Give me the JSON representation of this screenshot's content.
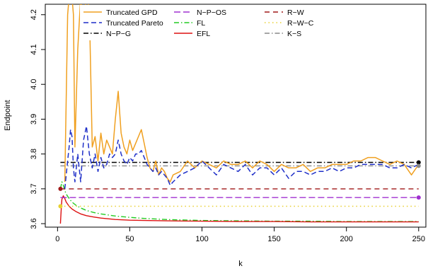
{
  "chart_data": {
    "type": "line",
    "title": "",
    "xlabel": "k",
    "ylabel": "Endpoint",
    "xlim": [
      0,
      250
    ],
    "ylim": [
      3.59,
      4.23
    ],
    "xticks": [
      0,
      50,
      100,
      150,
      200,
      250
    ],
    "yticks": [
      3.6,
      3.7,
      3.8,
      3.9,
      4.0,
      4.1,
      4.2
    ],
    "xtick_labels": [
      "0",
      "50",
      "100",
      "150",
      "200",
      "250"
    ],
    "ytick_labels": [
      "3.6",
      "3.7",
      "3.8",
      "3.9",
      "4.0",
      "4.1",
      "4.2"
    ],
    "grid": false,
    "legend_position": "top",
    "series": [
      {
        "name": "Truncated GPD",
        "color": "#F0A020",
        "dash": "solid",
        "x": [
          5,
          7,
          8,
          9,
          10,
          11,
          12,
          14,
          16,
          18,
          20,
          22,
          24,
          26,
          28,
          30,
          32,
          34,
          36,
          38,
          40,
          42,
          44,
          46,
          48,
          50,
          52,
          54,
          56,
          58,
          60,
          62,
          64,
          66,
          68,
          70,
          72,
          74,
          76,
          78,
          80,
          85,
          90,
          95,
          100,
          105,
          110,
          115,
          120,
          125,
          130,
          135,
          140,
          145,
          150,
          155,
          160,
          165,
          170,
          175,
          180,
          185,
          190,
          195,
          200,
          205,
          210,
          215,
          220,
          225,
          230,
          235,
          240,
          245,
          250
        ],
        "y": [
          3.72,
          4.2,
          4.25,
          4.25,
          4.25,
          4.2,
          3.82,
          4.1,
          4.25,
          4.18,
          4.25,
          4.22,
          3.82,
          3.85,
          3.78,
          3.86,
          3.8,
          3.84,
          3.82,
          3.8,
          3.9,
          3.98,
          3.86,
          3.82,
          3.8,
          3.84,
          3.81,
          3.83,
          3.85,
          3.87,
          3.83,
          3.79,
          3.76,
          3.75,
          3.78,
          3.74,
          3.76,
          3.75,
          3.73,
          3.72,
          3.74,
          3.75,
          3.78,
          3.76,
          3.78,
          3.77,
          3.76,
          3.78,
          3.77,
          3.77,
          3.78,
          3.76,
          3.78,
          3.77,
          3.75,
          3.77,
          3.76,
          3.76,
          3.77,
          3.75,
          3.76,
          3.76,
          3.77,
          3.77,
          3.77,
          3.78,
          3.78,
          3.79,
          3.79,
          3.78,
          3.77,
          3.78,
          3.77,
          3.74,
          3.77
        ]
      },
      {
        "name": "Truncated Pareto",
        "color": "#1F2FC8",
        "dash": "7,4",
        "x": [
          5,
          7,
          8,
          9,
          10,
          11,
          12,
          14,
          16,
          18,
          20,
          22,
          24,
          26,
          28,
          30,
          32,
          34,
          36,
          38,
          40,
          42,
          44,
          46,
          48,
          50,
          52,
          54,
          56,
          58,
          60,
          62,
          64,
          66,
          68,
          70,
          72,
          74,
          76,
          78,
          80,
          85,
          90,
          95,
          100,
          105,
          110,
          115,
          120,
          125,
          130,
          135,
          140,
          145,
          150,
          155,
          160,
          165,
          170,
          175,
          180,
          185,
          190,
          195,
          200,
          205,
          210,
          215,
          220,
          225,
          230,
          235,
          240,
          245,
          250
        ],
        "y": [
          3.7,
          3.78,
          3.82,
          3.87,
          3.85,
          3.76,
          3.72,
          3.8,
          3.72,
          3.84,
          3.88,
          3.8,
          3.76,
          3.8,
          3.75,
          3.79,
          3.76,
          3.77,
          3.8,
          3.79,
          3.8,
          3.84,
          3.8,
          3.78,
          3.77,
          3.79,
          3.78,
          3.8,
          3.8,
          3.81,
          3.79,
          3.77,
          3.76,
          3.75,
          3.76,
          3.74,
          3.75,
          3.74,
          3.73,
          3.71,
          3.72,
          3.74,
          3.75,
          3.76,
          3.78,
          3.76,
          3.74,
          3.77,
          3.76,
          3.75,
          3.77,
          3.74,
          3.76,
          3.76,
          3.74,
          3.76,
          3.73,
          3.75,
          3.75,
          3.74,
          3.75,
          3.75,
          3.76,
          3.75,
          3.76,
          3.76,
          3.77,
          3.77,
          3.77,
          3.77,
          3.76,
          3.76,
          3.77,
          3.76,
          3.77
        ]
      },
      {
        "name": "N−P−G",
        "color": "#000000",
        "dash": "7,3,1.5,3",
        "x": [
          2,
          250
        ],
        "y": [
          3.776,
          3.776
        ],
        "endpoint_marker": true
      },
      {
        "name": "N−P−OS",
        "color": "#A030D0",
        "dash": "9,4",
        "x": [
          2,
          250
        ],
        "y": [
          3.675,
          3.675
        ],
        "endpoint_marker": true
      },
      {
        "name": "FL",
        "color": "#22CC22",
        "dash": "7,3,1.5,3",
        "x": [
          2,
          3,
          4,
          5,
          6,
          8,
          10,
          13,
          16,
          20,
          25,
          30,
          40,
          50,
          60,
          75,
          100,
          125,
          150,
          175,
          200,
          225,
          250
        ],
        "y": [
          3.7,
          3.72,
          3.71,
          3.695,
          3.685,
          3.672,
          3.662,
          3.652,
          3.645,
          3.638,
          3.632,
          3.628,
          3.622,
          3.618,
          3.615,
          3.612,
          3.609,
          3.608,
          3.607,
          3.607,
          3.606,
          3.606,
          3.606
        ]
      },
      {
        "name": "EFL",
        "color": "#DD1111",
        "dash": "solid",
        "x": [
          2,
          2.5,
          3,
          4,
          5,
          6,
          8,
          10,
          13,
          16,
          20,
          25,
          30,
          40,
          50,
          60,
          75,
          100,
          125,
          150,
          175,
          200,
          225,
          250
        ],
        "y": [
          3.6,
          3.64,
          3.67,
          3.68,
          3.672,
          3.662,
          3.65,
          3.642,
          3.634,
          3.628,
          3.623,
          3.619,
          3.616,
          3.612,
          3.61,
          3.609,
          3.608,
          3.607,
          3.606,
          3.606,
          3.605,
          3.605,
          3.605,
          3.605
        ]
      },
      {
        "name": "R−W",
        "color": "#A01818",
        "dash": "7,5",
        "x": [
          2,
          250
        ],
        "y": [
          3.7,
          3.7
        ]
      },
      {
        "name": "R−W−C",
        "color": "#E8D030",
        "dash": "1.5,4",
        "x": [
          2,
          250
        ],
        "y": [
          3.65,
          3.65
        ]
      },
      {
        "name": "K−S",
        "color": "#888888",
        "dash": "7,3,1.5,3",
        "x": [
          2,
          250
        ],
        "y": [
          3.766,
          3.766
        ],
        "endpoint_marker": true
      }
    ],
    "markers": [
      {
        "x": 2,
        "y": 3.7,
        "color": "#A01818"
      },
      {
        "x": 2,
        "y": 3.65,
        "color": "#E8D030"
      },
      {
        "x": 250,
        "y": 3.776,
        "color": "#000000"
      },
      {
        "x": 250,
        "y": 3.766,
        "color": "#888888"
      },
      {
        "x": 250,
        "y": 3.675,
        "color": "#A030D0"
      }
    ]
  }
}
